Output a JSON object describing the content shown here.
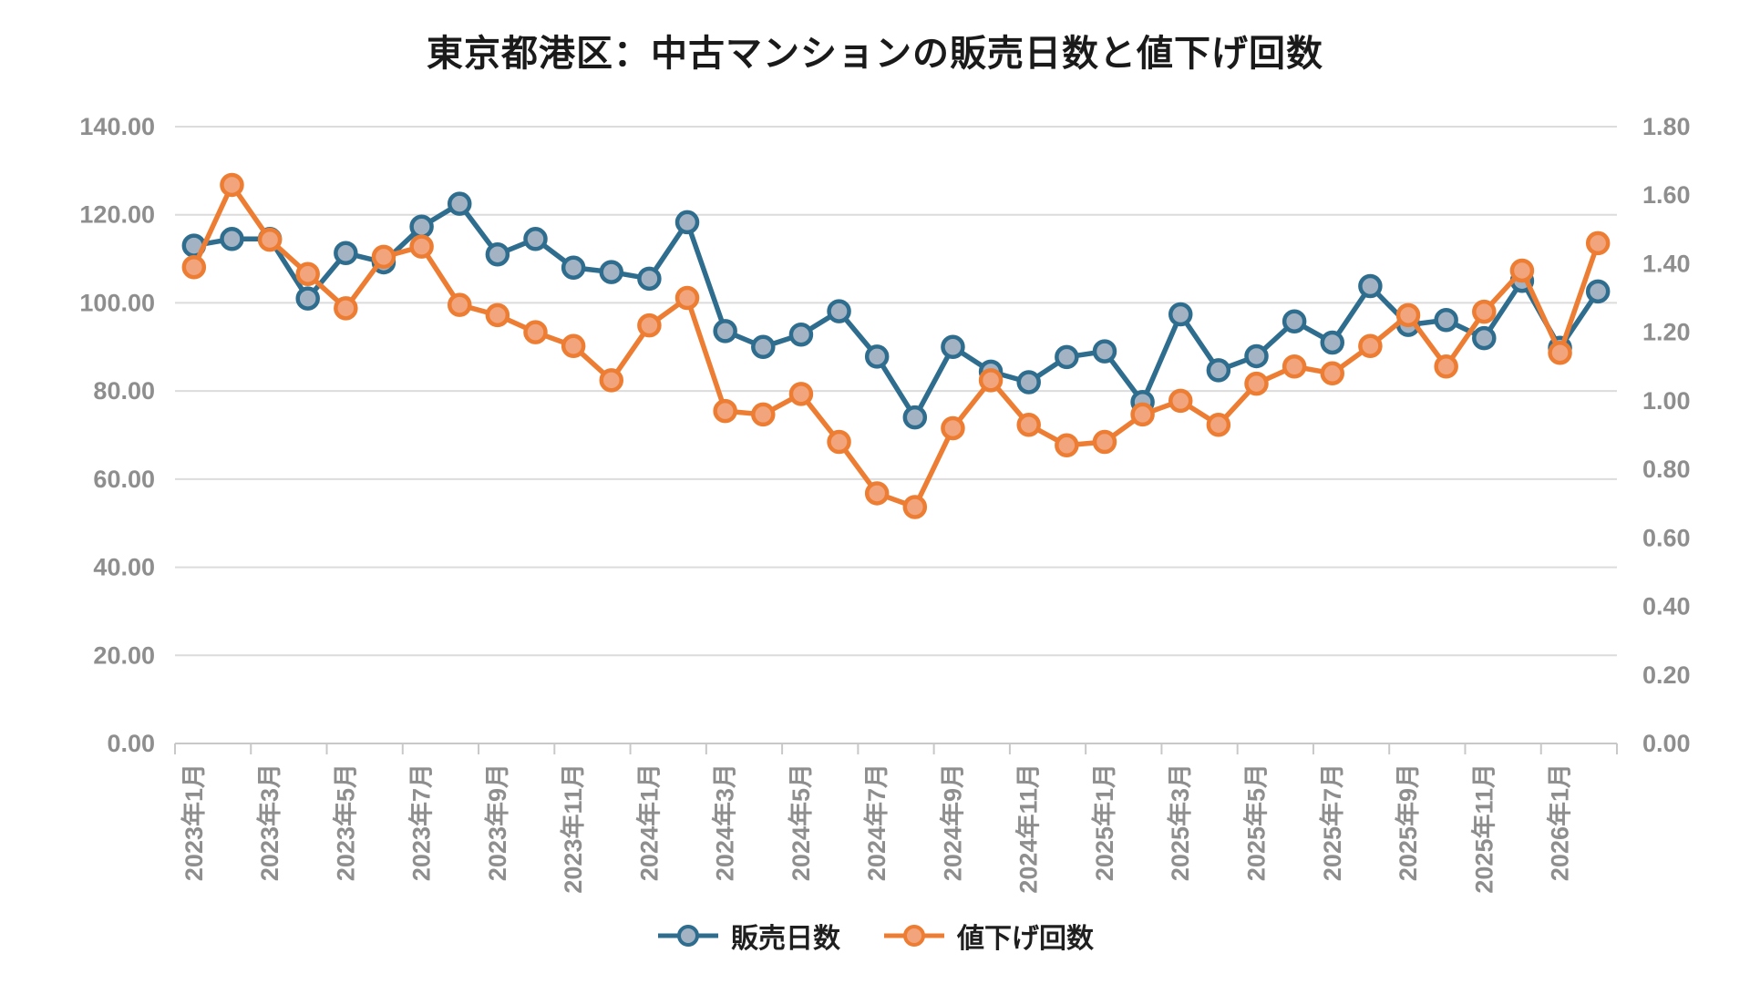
{
  "title": "東京都港区：中古マンションの販売日数と値下げ回数",
  "chart_data": {
    "type": "line",
    "title": "東京都港区：中古マンションの販売日数と値下げ回数",
    "n_points": 38,
    "x_tick_interval": 2,
    "x_tick_labels": [
      "2023年1月",
      "2023年3月",
      "2023年5月",
      "2023年7月",
      "2023年9月",
      "2023年11月",
      "2024年1月",
      "2024年3月",
      "2024年5月",
      "2024年7月",
      "2024年9月",
      "2024年11月",
      "2025年1月",
      "2025年3月",
      "2025年5月",
      "2025年7月",
      "2025年9月",
      "2025年11月",
      "2026年1月"
    ],
    "axes": {
      "left": {
        "min": 0,
        "max": 140,
        "step": 20,
        "tick_labels": [
          "0.00",
          "20.00",
          "40.00",
          "60.00",
          "80.00",
          "100.00",
          "120.00",
          "140.00"
        ]
      },
      "right": {
        "min": 0,
        "max": 1.8,
        "step": 0.2,
        "tick_labels": [
          "0.00",
          "0.20",
          "0.40",
          "0.60",
          "0.80",
          "1.00",
          "1.20",
          "1.40",
          "1.60",
          "1.80"
        ]
      }
    },
    "grid": {
      "show": true,
      "follows": "left-axis",
      "color": "#dcdcdc",
      "axis_line_color": "#c8c8c8"
    },
    "legend_position": "bottom-center",
    "series": [
      {
        "name": "販売日数",
        "axis": "left",
        "color": "#2e6d8e",
        "marker_fill": "#a4b3c3",
        "values": [
          113.0,
          114.5,
          114.5,
          101.0,
          111.3,
          109.2,
          117.3,
          122.5,
          111.0,
          114.5,
          108.0,
          107.0,
          105.5,
          118.3,
          93.6,
          90.0,
          92.8,
          98.1,
          87.8,
          74.0,
          90.0,
          84.4,
          82.0,
          87.7,
          89.0,
          77.5,
          97.4,
          84.7,
          87.9,
          95.8,
          91.0,
          103.8,
          95.0,
          96.1,
          92.0,
          105.0,
          89.8,
          102.6
        ]
      },
      {
        "name": "値下げ回数",
        "axis": "right",
        "color": "#ed7d33",
        "marker_fill": "#f2a47c",
        "values": [
          1.39,
          1.63,
          1.47,
          1.37,
          1.27,
          1.42,
          1.45,
          1.28,
          1.25,
          1.2,
          1.16,
          1.06,
          1.22,
          1.3,
          0.97,
          0.96,
          1.02,
          0.88,
          0.73,
          0.69,
          0.92,
          1.06,
          0.93,
          0.87,
          0.88,
          0.96,
          1.0,
          0.93,
          1.05,
          1.1,
          1.08,
          1.16,
          1.25,
          1.1,
          1.26,
          1.38,
          1.14,
          1.46
        ]
      }
    ]
  }
}
